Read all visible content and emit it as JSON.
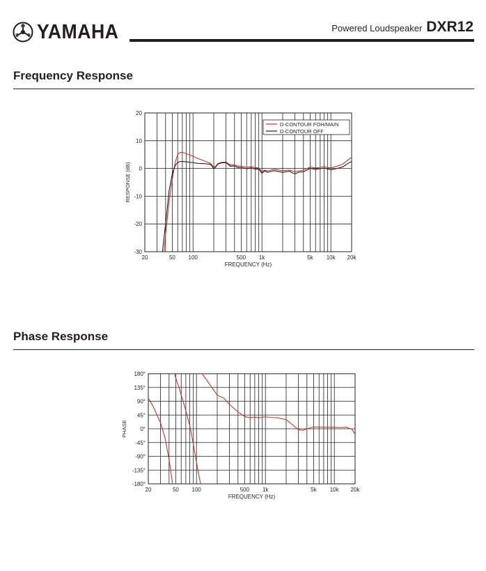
{
  "header": {
    "brand": "YAMAHA",
    "product_type": "Powered Loudspeaker",
    "model": "DXR12",
    "icon": "yamaha-tuning-fork-logo-icon"
  },
  "sections": [
    {
      "title": "Frequency Response"
    },
    {
      "title": "Phase Response"
    }
  ],
  "chart_data": [
    {
      "type": "line",
      "title": "",
      "xlabel": "FREQUENCY (Hz)",
      "ylabel": "RESPONSE (dB)",
      "x_scale": "log",
      "xlim": [
        20,
        20000
      ],
      "ylim": [
        -30,
        20
      ],
      "grid": true,
      "legend_position": "top-right",
      "x_ticks": [
        20,
        50,
        100,
        500,
        1000,
        5000,
        10000,
        20000
      ],
      "x_tick_labels": [
        "20",
        "50",
        "100",
        "500",
        "1k",
        "5k",
        "10k",
        "20k"
      ],
      "y_ticks": [
        20,
        10,
        0,
        -10,
        -20,
        -30
      ],
      "y_tick_labels": [
        "20",
        "10",
        "0",
        "-10",
        "-20",
        "-30"
      ],
      "series": [
        {
          "name": "D-CONTOUR FOH/MAIN",
          "color": "#c0392b",
          "x": [
            38,
            40,
            45,
            50,
            55,
            60,
            65,
            70,
            80,
            90,
            100,
            120,
            150,
            180,
            200,
            210,
            230,
            260,
            300,
            350,
            400,
            450,
            500,
            600,
            700,
            800,
            900,
            1000,
            1100,
            1200,
            1500,
            2000,
            2500,
            3000,
            3500,
            4000,
            5000,
            6000,
            7000,
            8000,
            9000,
            10000,
            12000,
            15000,
            18000,
            20000
          ],
          "y": [
            -30,
            -24,
            -12,
            -4,
            2,
            5,
            5.8,
            5.8,
            5.3,
            4.8,
            4.4,
            3.5,
            2.6,
            1.8,
            0.5,
            0.6,
            1.8,
            2.2,
            2.3,
            1.2,
            1.3,
            0.8,
            0.9,
            0.4,
            0.6,
            0.3,
            0.2,
            -1.2,
            -0.6,
            -0.9,
            -0.3,
            -0.8,
            -0.6,
            -1.2,
            -0.9,
            -0.6,
            0.5,
            0.2,
            0.4,
            0.6,
            0.3,
            0.2,
            0.7,
            1.6,
            3.2,
            4
          ]
        },
        {
          "name": "D-CONTOUR OFF",
          "color": "#231f20",
          "x": [
            36,
            40,
            45,
            50,
            55,
            60,
            65,
            70,
            80,
            90,
            100,
            120,
            150,
            180,
            200,
            210,
            230,
            260,
            300,
            350,
            400,
            450,
            500,
            600,
            700,
            800,
            900,
            1000,
            1100,
            1200,
            1500,
            2000,
            2500,
            3000,
            3500,
            4000,
            5000,
            6000,
            7000,
            8000,
            9000,
            10000,
            12000,
            15000,
            18000,
            20000
          ],
          "y": [
            -30,
            -20,
            -8,
            -2,
            1,
            2.2,
            2.5,
            2.5,
            2.4,
            2.2,
            2.1,
            1.8,
            1.7,
            1.5,
            -0.1,
            0.3,
            1.6,
            2,
            2.1,
            0.8,
            0.9,
            0.3,
            0.4,
            -0.1,
            0.2,
            -0.2,
            -0.3,
            -1.7,
            -0.9,
            -1.4,
            -0.8,
            -1.4,
            -1,
            -2,
            -1.3,
            -1.2,
            0,
            -0.3,
            -0.1,
            0.1,
            -0.2,
            -0.5,
            -0.1,
            0.6,
            1.9,
            2.5
          ]
        }
      ]
    },
    {
      "type": "line",
      "title": "",
      "xlabel": "FREQUENCY (Hz)",
      "ylabel": "PHASE",
      "x_scale": "log",
      "xlim": [
        20,
        20000
      ],
      "ylim": [
        -180,
        180
      ],
      "grid": true,
      "x_ticks": [
        20,
        50,
        100,
        500,
        1000,
        5000,
        10000,
        20000
      ],
      "x_tick_labels": [
        "20",
        "50",
        "100",
        "500",
        "1k",
        "5k",
        "10k",
        "20k"
      ],
      "y_ticks": [
        180,
        135,
        90,
        45,
        0,
        -45,
        -90,
        -135,
        -180
      ],
      "y_tick_labels": [
        "180°",
        "135°",
        "90°",
        "45°",
        "0°",
        "-45°",
        "-90°",
        "-135°",
        "-180°"
      ],
      "series": [
        {
          "name": "",
          "color": "#c0392b",
          "segments": [
            {
              "x": [
                20,
                22,
                25,
                30,
                35,
                40,
                45
              ],
              "y": [
                100,
                85,
                60,
                20,
                -30,
                -100,
                -180
              ]
            },
            {
              "x": [
                48,
                50,
                55,
                60,
                70,
                80,
                90,
                100,
                110,
                115
              ],
              "y": [
                180,
                165,
                140,
                110,
                60,
                10,
                -50,
                -110,
                -160,
                -180
              ]
            },
            {
              "x": [
                120,
                130,
                150,
                180,
                200,
                250,
                300,
                400,
                500,
                600,
                700,
                800,
                1000,
                1200,
                1500,
                2000,
                2500,
                3000,
                3500,
                4000,
                5000,
                6000,
                7000,
                8000,
                10000,
                12000,
                15000,
                18000,
                20000
              ],
              "y": [
                180,
                170,
                150,
                125,
                110,
                100,
                80,
                55,
                40,
                36,
                38,
                36,
                39,
                37,
                36,
                30,
                12,
                -3,
                -5,
                0,
                6,
                6,
                5,
                5,
                5,
                4,
                5,
                -2,
                -18
              ]
            }
          ]
        }
      ]
    }
  ]
}
